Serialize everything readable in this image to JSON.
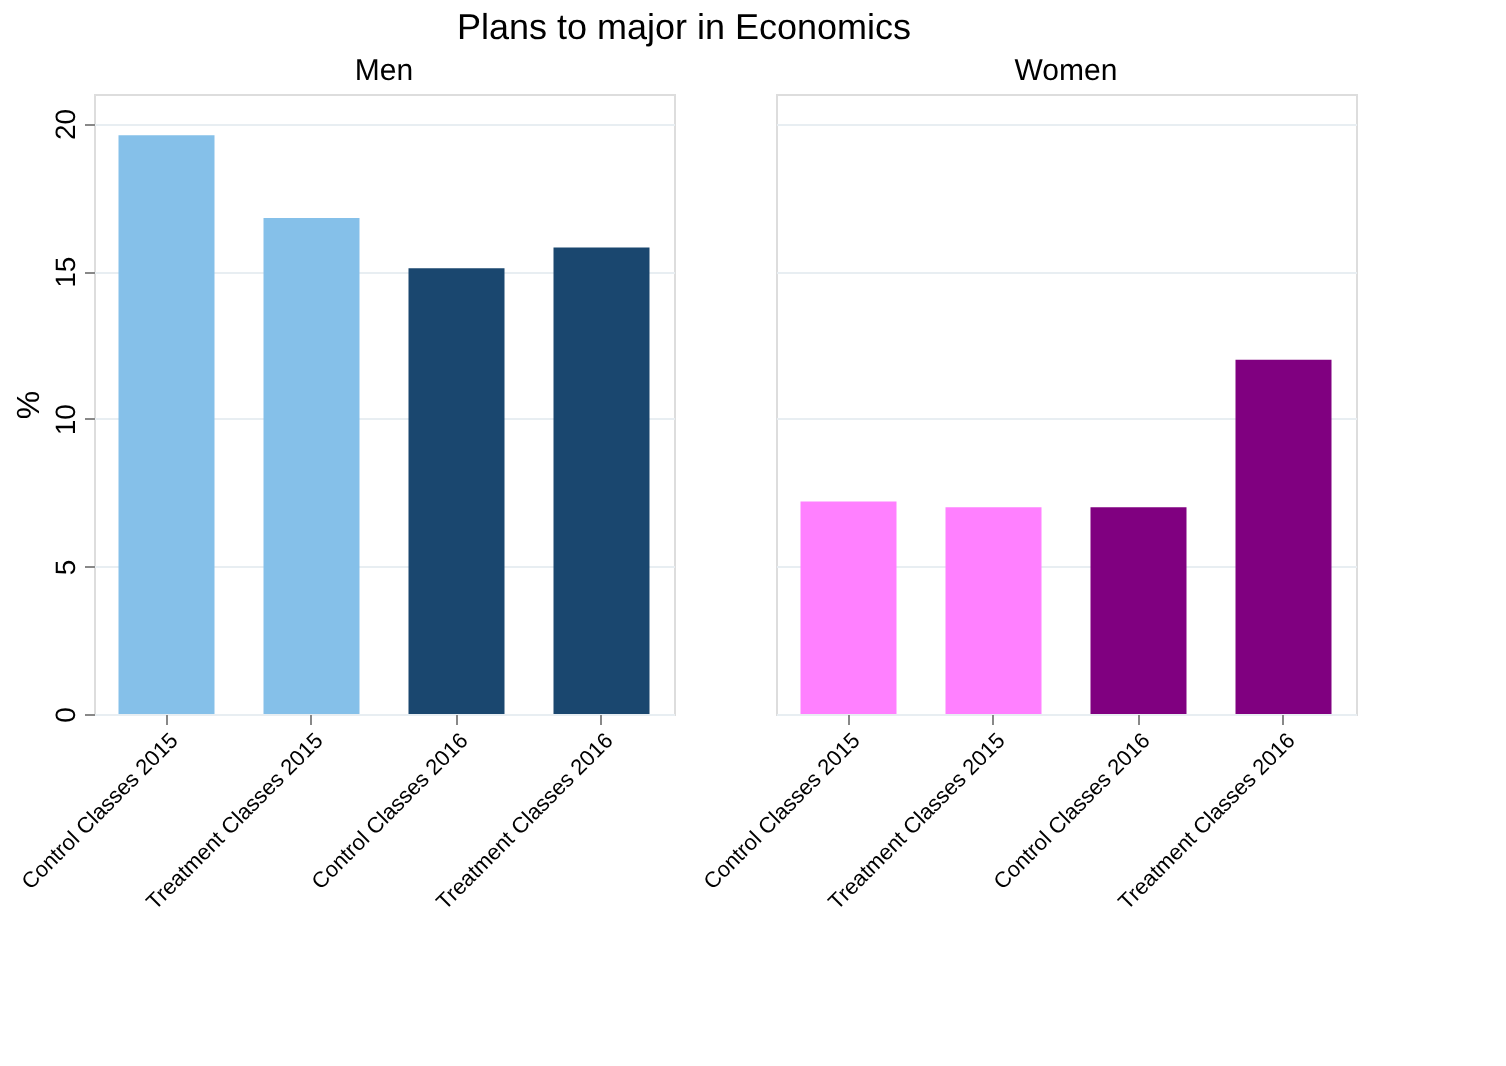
{
  "chart_data": [
    {
      "type": "bar",
      "title": "Plans to major in Economics",
      "subtitle": "Men",
      "ylabel": "%",
      "categories": [
        "Control Classes 2015",
        "Treatment Classes 2015",
        "Control Classes 2016",
        "Treatment Classes 2016"
      ],
      "values": [
        19.6,
        16.8,
        15.1,
        15.8
      ],
      "colors": [
        "#85c0e9",
        "#85c0e9",
        "#1a476f",
        "#1a476f"
      ],
      "ylim": [
        0,
        21
      ],
      "yticks": [
        0,
        5,
        10,
        15,
        20
      ],
      "grid": "y"
    },
    {
      "type": "bar",
      "subtitle": "Women",
      "categories": [
        "Control Classes 2015",
        "Treatment Classes 2015",
        "Control Classes 2016",
        "Treatment Classes 2016"
      ],
      "values": [
        7.2,
        7.0,
        7.0,
        12.0
      ],
      "colors": [
        "#ff80ff",
        "#ff80ff",
        "#800080",
        "#800080"
      ],
      "ylim": [
        0,
        21
      ],
      "yticks": [
        0,
        5,
        10,
        15,
        20
      ],
      "grid": "y",
      "tick_labels": "x"
    }
  ]
}
